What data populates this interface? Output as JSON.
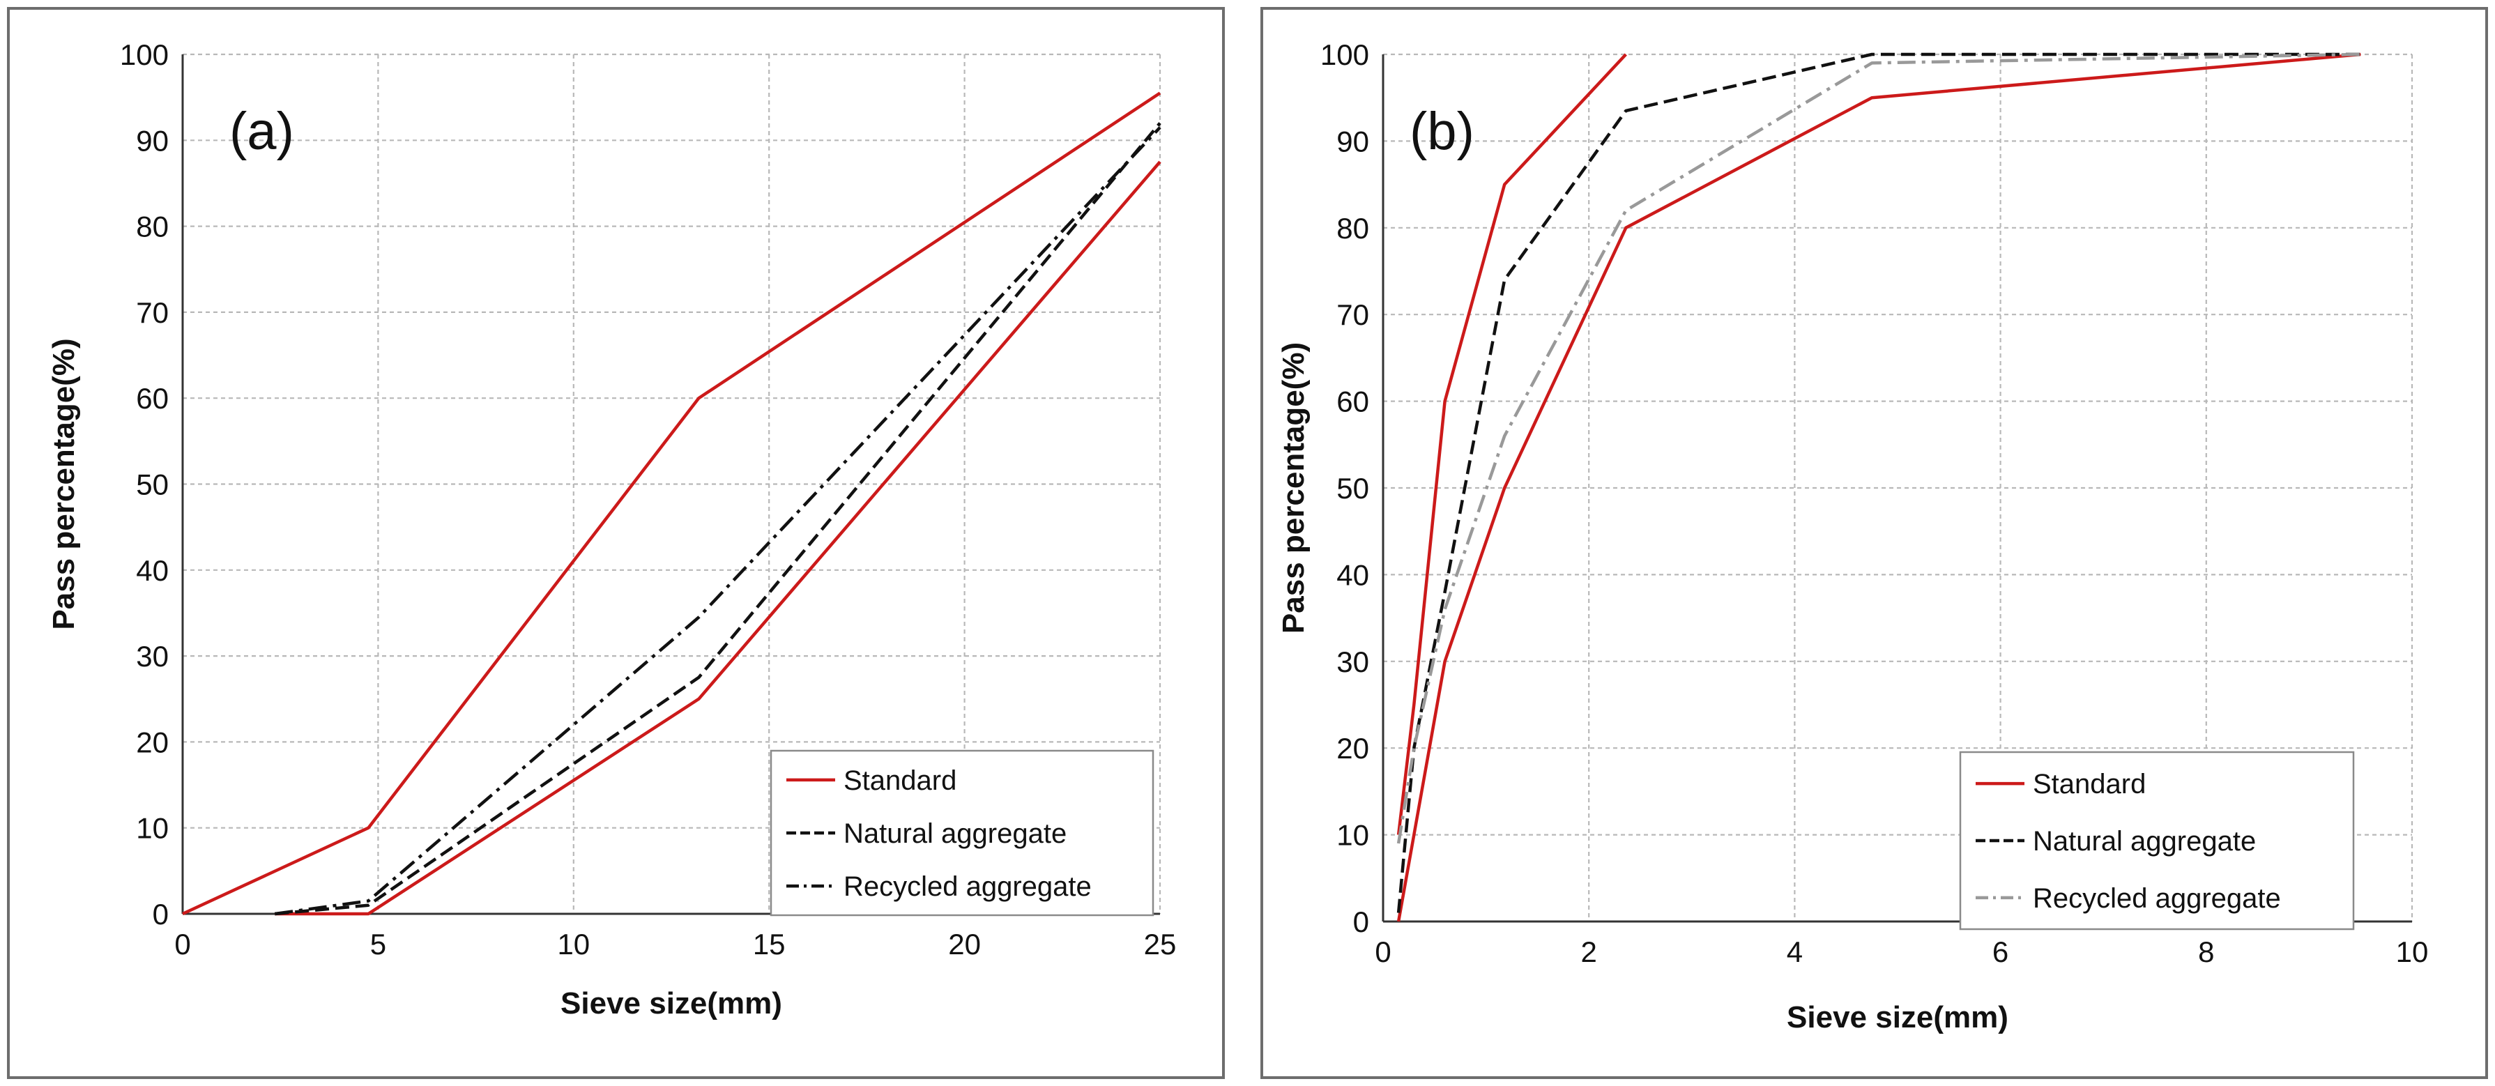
{
  "chart_data": [
    {
      "type": "line",
      "panel_label": "(a)",
      "xlabel": "Sieve size(mm)",
      "ylabel": "Pass percentage(%)",
      "xlim": [
        0,
        25
      ],
      "ylim": [
        0,
        100
      ],
      "xticks": [
        0,
        5,
        10,
        15,
        20,
        25
      ],
      "yticks": [
        0,
        10,
        20,
        30,
        40,
        50,
        60,
        70,
        80,
        90,
        100
      ],
      "grid": true,
      "legend_position": "bottom-right",
      "series": [
        {
          "name": "Standard",
          "style": "solid",
          "color": "#cc1a1a",
          "x": [
            0,
            4.75,
            13.2,
            25
          ],
          "y": [
            0,
            10,
            60,
            95.5
          ]
        },
        {
          "name": "",
          "style": "solid",
          "color": "#cc1a1a",
          "x": [
            2.36,
            4.75,
            13.2,
            25
          ],
          "y": [
            0,
            0,
            25,
            87.5
          ]
        },
        {
          "name": "Natural aggregate",
          "style": "dashed",
          "color": "#111111",
          "x": [
            2.36,
            4.75,
            13.2,
            25
          ],
          "y": [
            0,
            1,
            27.5,
            92
          ]
        },
        {
          "name": "Recycled aggregate",
          "style": "dashdot",
          "color": "#111111",
          "x": [
            2.36,
            4.75,
            13.2,
            25
          ],
          "y": [
            0,
            1.5,
            34.5,
            91.5
          ]
        }
      ]
    },
    {
      "type": "line",
      "panel_label": "(b)",
      "xlabel": "Sieve size(mm)",
      "ylabel": "Pass percentage(%)",
      "xlim": [
        0,
        10
      ],
      "ylim": [
        0,
        100
      ],
      "xticks": [
        0,
        2,
        4,
        6,
        8,
        10
      ],
      "yticks": [
        0,
        10,
        20,
        30,
        40,
        50,
        60,
        70,
        80,
        90,
        100
      ],
      "grid": true,
      "legend_position": "bottom-right",
      "series": [
        {
          "name": "Standard",
          "style": "solid",
          "color": "#cc1a1a",
          "x": [
            0.15,
            0.3,
            0.6,
            1.18,
            2.36
          ],
          "y": [
            10,
            25,
            60,
            85,
            100
          ]
        },
        {
          "name": "",
          "style": "solid",
          "color": "#cc1a1a",
          "x": [
            0.15,
            0.3,
            0.6,
            1.18,
            2.36,
            4.75,
            9.5
          ],
          "y": [
            0,
            10,
            30,
            50,
            80,
            95,
            100
          ]
        },
        {
          "name": "Natural aggregate",
          "style": "dashed",
          "color": "#111111",
          "x": [
            0.15,
            0.3,
            0.6,
            1.18,
            2.36,
            4.75,
            9.5
          ],
          "y": [
            1,
            20,
            38,
            74,
            93.5,
            100,
            100
          ]
        },
        {
          "name": "Recycled aggregate",
          "style": "dashdot",
          "color": "#999999",
          "x": [
            0.15,
            0.3,
            0.6,
            1.18,
            2.36,
            4.75,
            9.5
          ],
          "y": [
            9,
            20,
            36,
            56,
            82,
            99,
            100
          ]
        }
      ]
    }
  ]
}
